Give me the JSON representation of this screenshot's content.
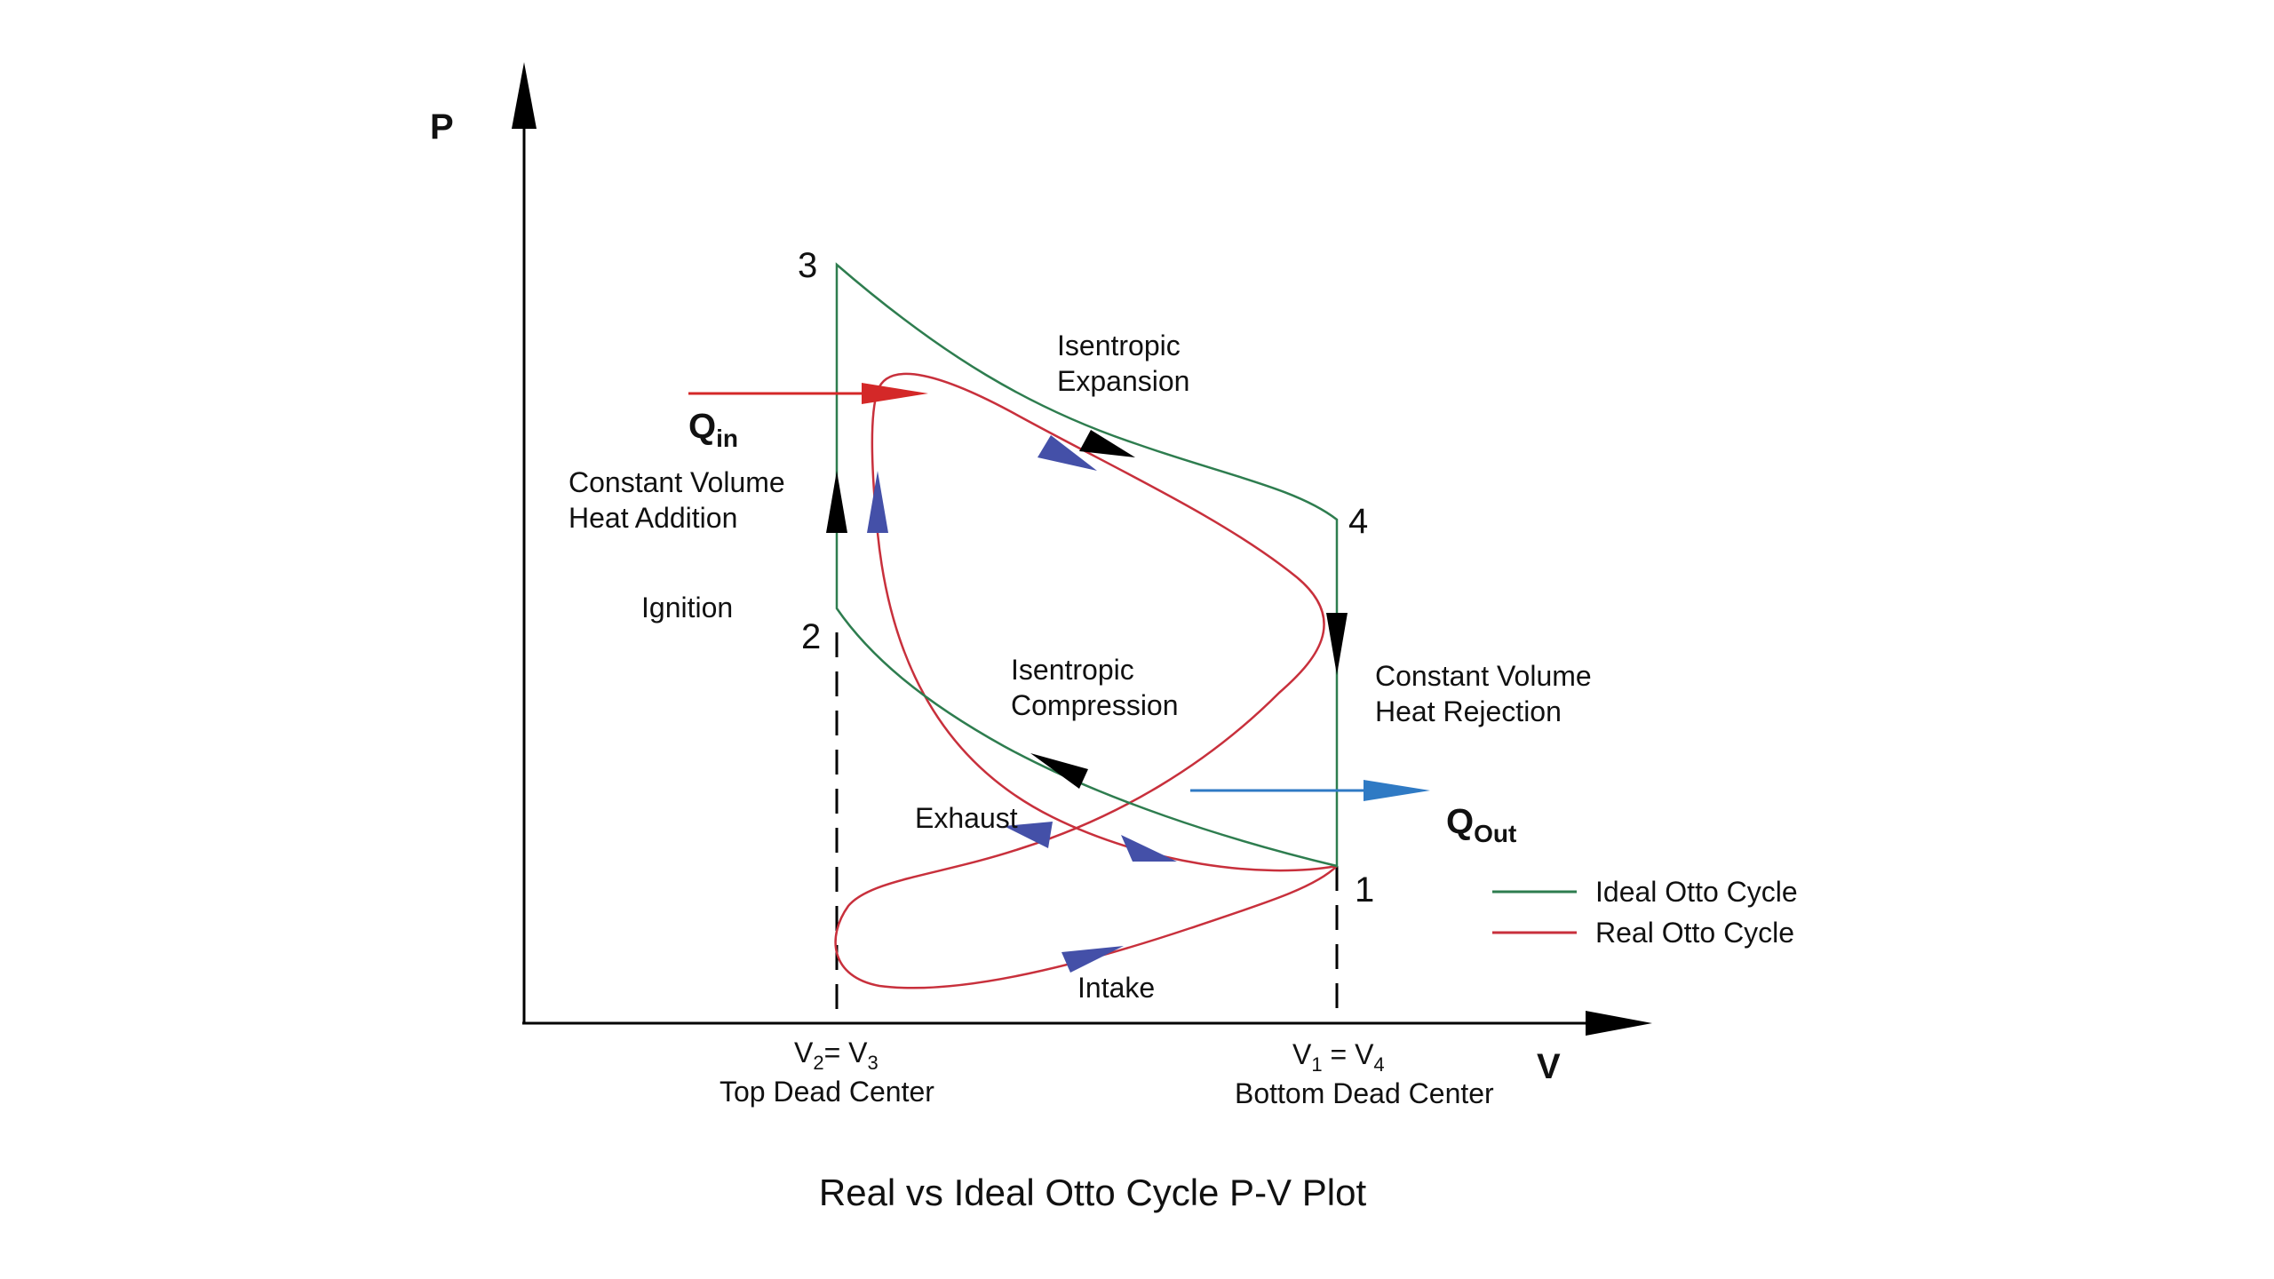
{
  "title": "Real vs Ideal Otto Cycle P-V Plot",
  "axes": {
    "y_label": "P",
    "x_label": "V"
  },
  "points": {
    "p1": "1",
    "p2": "2",
    "p3": "3",
    "p4": "4"
  },
  "labels": {
    "isentropic_expansion": [
      "Isentropic",
      "Expansion"
    ],
    "isentropic_compression": [
      "Isentropic",
      "Compression"
    ],
    "constant_volume_heat_addition": [
      "Constant Volume",
      "Heat Addition"
    ],
    "constant_volume_heat_rejection": [
      "Constant Volume",
      "Heat Rejection"
    ],
    "ignition": "Ignition",
    "exhaust": "Exhaust",
    "intake": "Intake"
  },
  "heat": {
    "q_in_main": "Q",
    "q_in_sub": "in",
    "q_out_main": "Q",
    "q_out_sub": "Out"
  },
  "volumes": {
    "tdc_v2": "V",
    "tdc_v2_sub": "2",
    "tdc_eq": "= V",
    "tdc_v3_sub": "3",
    "tdc_name": "Top Dead Center",
    "bdc_v1": "V",
    "bdc_v1_sub": "1",
    "bdc_eq": " = V",
    "bdc_v4_sub": "4",
    "bdc_name": "Bottom Dead Center"
  },
  "legend": {
    "ideal": "Ideal Otto Cycle",
    "real": "Real Otto Cycle"
  },
  "colors": {
    "ideal": "#2e7d4f",
    "real": "#c8303c",
    "flow_arrow": "#4450a8",
    "q_in": "#d42828",
    "q_out": "#2f7ac4",
    "axis": "#000000"
  }
}
